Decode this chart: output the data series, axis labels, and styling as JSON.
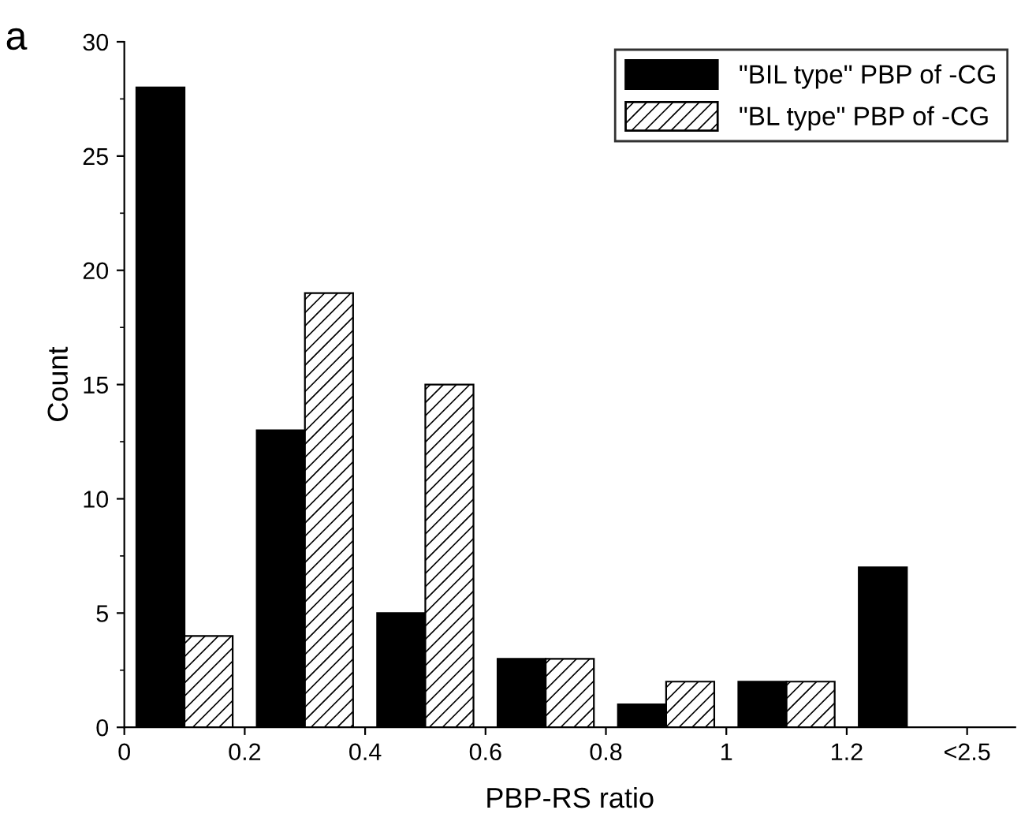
{
  "chart_data": {
    "type": "bar",
    "xlabel": "PBP-RS ratio",
    "ylabel": "Count",
    "annotations": [
      "a"
    ],
    "series": [
      {
        "name": "\"BIL type\" PBP of -CG",
        "color": "#000000",
        "x": [
          0.06,
          0.26,
          0.46,
          0.66,
          0.86,
          1.06,
          1.26
        ],
        "values": [
          28,
          13,
          5,
          3,
          1,
          2,
          7
        ]
      },
      {
        "name": "\"BL type\" PBP of -CG",
        "color": "#000000",
        "x": [
          0.14,
          0.34,
          0.54,
          0.74,
          0.94,
          1.14
        ],
        "values": [
          4,
          19,
          15,
          3,
          2,
          2
        ]
      }
    ],
    "xlim": [
      0,
      1.48
    ],
    "xticks": [
      0,
      0.2,
      0.4,
      0.6,
      0.8,
      1,
      1.2,
      {
        "value": 1.4,
        "label": "<2.5"
      }
    ],
    "ylim": [
      0,
      30
    ],
    "yticks": [
      0,
      5,
      10,
      15,
      20,
      25,
      30
    ],
    "grid": false,
    "legend": "top right"
  }
}
